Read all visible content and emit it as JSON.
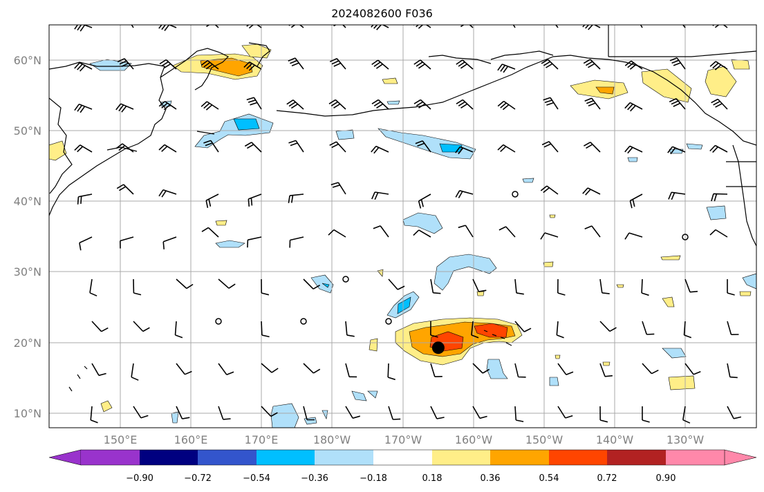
{
  "title": "2024082600 F036",
  "map": {
    "lat_labels": [
      "60°N",
      "50°N",
      "40°N",
      "30°N",
      "20°N",
      "10°N"
    ],
    "lon_labels": [
      "150°E",
      "160°E",
      "170°E",
      "180°W",
      "170°W",
      "160°W",
      "150°W",
      "140°W",
      "130°W"
    ],
    "storm_center": {
      "lon": -165,
      "lat": 19.3
    }
  },
  "colorbar": {
    "ticks": [
      "−0.90",
      "−0.72",
      "−0.54",
      "−0.36",
      "−0.18",
      "0.18",
      "0.36",
      "0.54",
      "0.72",
      "0.90"
    ],
    "colors": [
      "#9933cc",
      "#000080",
      "#3355cc",
      "#00bfff",
      "#b0e0fa",
      "#ffffff",
      "#ffee88",
      "#ffa500",
      "#ff4500",
      "#b22222",
      "#ff88aa"
    ]
  }
}
